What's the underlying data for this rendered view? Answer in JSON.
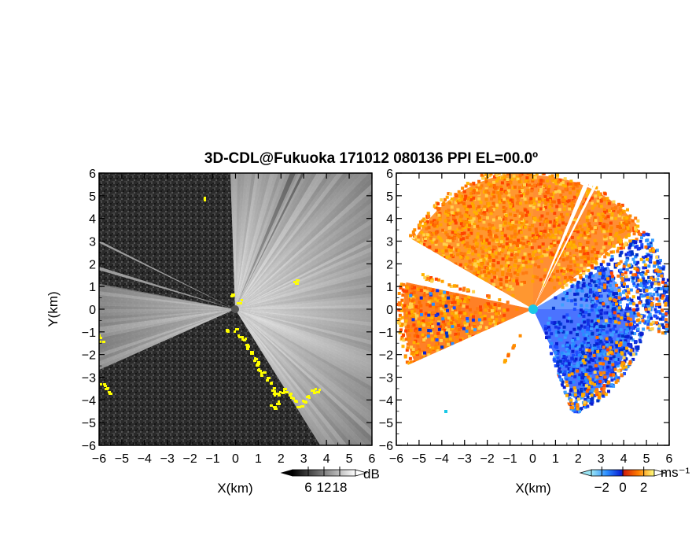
{
  "title": "3D-CDL@Fukuoka 171012 080136 PPI EL=00.0º",
  "chart_data": [
    {
      "type": "heatmap",
      "name": "reflectivity-ppi",
      "xlabel": "X(km)",
      "ylabel": "Y(km)",
      "xlim": [
        -6,
        6
      ],
      "ylim": [
        -6,
        6
      ],
      "xticks": [
        "−6",
        "−5",
        "−4",
        "−3",
        "−2",
        "−1",
        "0",
        "1",
        "2",
        "3",
        "4",
        "5",
        "6"
      ],
      "yticks": [
        "6",
        "5",
        "4",
        "3",
        "2",
        "1",
        "0",
        "−1",
        "−2",
        "−3",
        "−4",
        "−5",
        "−6"
      ],
      "colorbar": {
        "unit": "dB",
        "ticks": [
          "6",
          "12",
          "18"
        ],
        "tick_values": [
          6,
          12,
          18
        ],
        "range": [
          0,
          24
        ],
        "colormap": "grayscale"
      },
      "highlight_color": "#ffff00"
    },
    {
      "type": "heatmap",
      "name": "doppler-velocity-ppi",
      "xlabel": "X(km)",
      "xlim": [
        -6,
        6
      ],
      "ylim": [
        -6,
        6
      ],
      "xticks": [
        "−6",
        "−5",
        "−4",
        "−3",
        "−2",
        "−1",
        "0",
        "1",
        "2",
        "3",
        "4",
        "5",
        "6"
      ],
      "yticks": [
        "6",
        "5",
        "4",
        "3",
        "2",
        "1",
        "0",
        "−1",
        "−2",
        "−3",
        "−4",
        "−5",
        "−6"
      ],
      "colorbar": {
        "unit": "ms⁻¹",
        "ticks": [
          "−2",
          "0",
          "2"
        ],
        "tick_values": [
          -2,
          0,
          2
        ],
        "range": [
          -3,
          3
        ],
        "colormap": "blue-red"
      }
    }
  ]
}
